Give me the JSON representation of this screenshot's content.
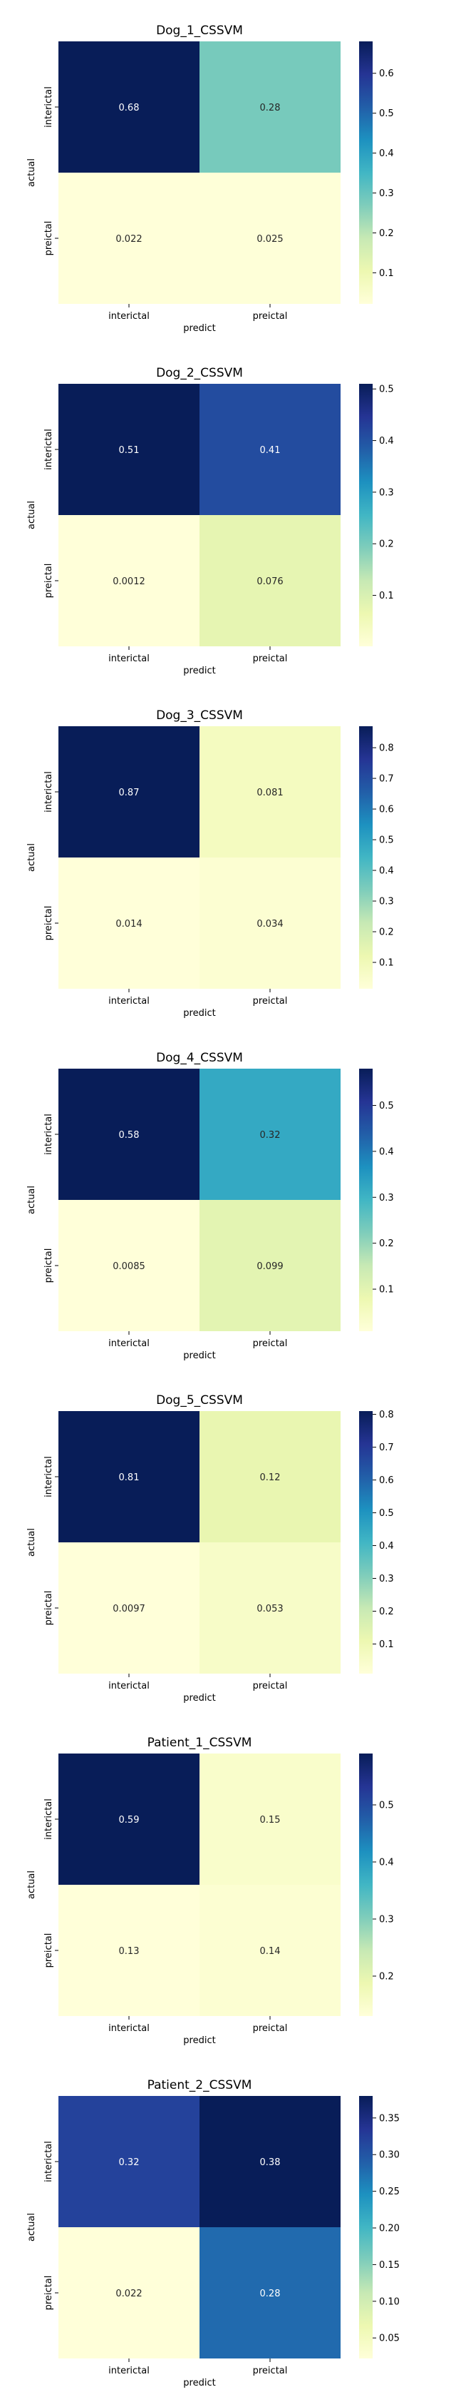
{
  "chart_data": [
    {
      "type": "heatmap",
      "title": "Dog_1_CSSVM",
      "xlabel": "predict",
      "ylabel": "actual",
      "x_categories": [
        "interictal",
        "preictal"
      ],
      "y_categories": [
        "interictal",
        "preictal"
      ],
      "values": [
        [
          0.68,
          0.28
        ],
        [
          0.022,
          0.025
        ]
      ],
      "cell_labels": [
        [
          "0.68",
          "0.28"
        ],
        [
          "0.022",
          "0.025"
        ]
      ],
      "colorbar_range": [
        0.022,
        0.68
      ],
      "colorbar_ticks": [
        "0.1",
        "0.2",
        "0.3",
        "0.4",
        "0.5",
        "0.6"
      ],
      "colormap": "YlGnBu"
    },
    {
      "type": "heatmap",
      "title": "Dog_2_CSSVM",
      "xlabel": "predict",
      "ylabel": "actual",
      "x_categories": [
        "interictal",
        "preictal"
      ],
      "y_categories": [
        "interictal",
        "preictal"
      ],
      "values": [
        [
          0.51,
          0.41
        ],
        [
          0.0012,
          0.076
        ]
      ],
      "cell_labels": [
        [
          "0.51",
          "0.41"
        ],
        [
          "0.0012",
          "0.076"
        ]
      ],
      "colorbar_range": [
        0.0012,
        0.51
      ],
      "colorbar_ticks": [
        "0.1",
        "0.2",
        "0.3",
        "0.4",
        "0.5"
      ],
      "colormap": "YlGnBu"
    },
    {
      "type": "heatmap",
      "title": "Dog_3_CSSVM",
      "xlabel": "predict",
      "ylabel": "actual",
      "x_categories": [
        "interictal",
        "preictal"
      ],
      "y_categories": [
        "interictal",
        "preictal"
      ],
      "values": [
        [
          0.87,
          0.081
        ],
        [
          0.014,
          0.034
        ]
      ],
      "cell_labels": [
        [
          "0.87",
          "0.081"
        ],
        [
          "0.014",
          "0.034"
        ]
      ],
      "colorbar_range": [
        0.014,
        0.87
      ],
      "colorbar_ticks": [
        "0.1",
        "0.2",
        "0.3",
        "0.4",
        "0.5",
        "0.6",
        "0.7",
        "0.8"
      ],
      "colormap": "YlGnBu"
    },
    {
      "type": "heatmap",
      "title": "Dog_4_CSSVM",
      "xlabel": "predict",
      "ylabel": "actual",
      "x_categories": [
        "interictal",
        "preictal"
      ],
      "y_categories": [
        "interictal",
        "preictal"
      ],
      "values": [
        [
          0.58,
          0.32
        ],
        [
          0.0085,
          0.099
        ]
      ],
      "cell_labels": [
        [
          "0.58",
          "0.32"
        ],
        [
          "0.0085",
          "0.099"
        ]
      ],
      "colorbar_range": [
        0.0085,
        0.58
      ],
      "colorbar_ticks": [
        "0.1",
        "0.2",
        "0.3",
        "0.4",
        "0.5"
      ],
      "colormap": "YlGnBu"
    },
    {
      "type": "heatmap",
      "title": "Dog_5_CSSVM",
      "xlabel": "predict",
      "ylabel": "actual",
      "x_categories": [
        "interictal",
        "preictal"
      ],
      "y_categories": [
        "interictal",
        "preictal"
      ],
      "values": [
        [
          0.81,
          0.12
        ],
        [
          0.0097,
          0.053
        ]
      ],
      "cell_labels": [
        [
          "0.81",
          "0.12"
        ],
        [
          "0.0097",
          "0.053"
        ]
      ],
      "colorbar_range": [
        0.0097,
        0.81
      ],
      "colorbar_ticks": [
        "0.1",
        "0.2",
        "0.3",
        "0.4",
        "0.5",
        "0.6",
        "0.7",
        "0.8"
      ],
      "colormap": "YlGnBu"
    },
    {
      "type": "heatmap",
      "title": "Patient_1_CSSVM",
      "xlabel": "predict",
      "ylabel": "actual",
      "x_categories": [
        "interictal",
        "preictal"
      ],
      "y_categories": [
        "interictal",
        "preictal"
      ],
      "values": [
        [
          0.59,
          0.15
        ],
        [
          0.13,
          0.14
        ]
      ],
      "cell_labels": [
        [
          "0.59",
          "0.15"
        ],
        [
          "0.13",
          "0.14"
        ]
      ],
      "colorbar_range": [
        0.13,
        0.59
      ],
      "colorbar_ticks": [
        "0.2",
        "0.3",
        "0.4",
        "0.5"
      ],
      "colormap": "YlGnBu"
    },
    {
      "type": "heatmap",
      "title": "Patient_2_CSSVM",
      "xlabel": "predict",
      "ylabel": "actual",
      "x_categories": [
        "interictal",
        "preictal"
      ],
      "y_categories": [
        "interictal",
        "preictal"
      ],
      "values": [
        [
          0.32,
          0.38
        ],
        [
          0.022,
          0.28
        ]
      ],
      "cell_labels": [
        [
          "0.32",
          "0.38"
        ],
        [
          "0.022",
          "0.28"
        ]
      ],
      "colorbar_range": [
        0.022,
        0.38
      ],
      "colorbar_ticks": [
        "0.05",
        "0.10",
        "0.15",
        "0.20",
        "0.25",
        "0.30",
        "0.35"
      ],
      "colormap": "YlGnBu"
    }
  ]
}
